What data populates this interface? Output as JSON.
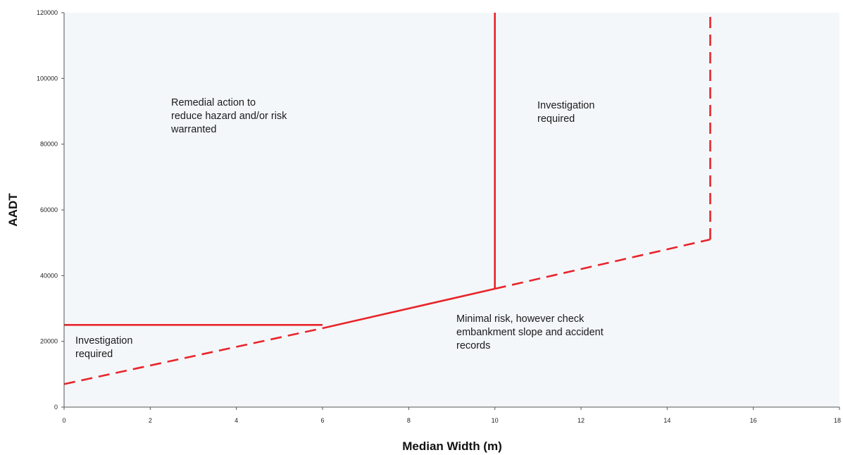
{
  "chart_data": {
    "type": "line",
    "title": "",
    "xlabel": "Median Width (m)",
    "ylabel": "AADT",
    "xlim": [
      0,
      18
    ],
    "ylim": [
      0,
      120000
    ],
    "x_ticks": [
      "0",
      "2",
      "4",
      "6",
      "8",
      "10",
      "12",
      "14",
      "16",
      "18"
    ],
    "y_ticks": [
      "0",
      "20000",
      "40000",
      "60000",
      "80000",
      "100000",
      "120000"
    ],
    "grid": false,
    "line_color": "#e8252b",
    "background_color": "#f4f7fa",
    "series": [
      {
        "style": "solid",
        "x": [
          0,
          6
        ],
        "y": [
          25000,
          25000
        ]
      },
      {
        "style": "solid",
        "x": [
          6,
          10
        ],
        "y": [
          24000,
          36000
        ]
      },
      {
        "style": "solid",
        "x": [
          10,
          10
        ],
        "y": [
          36000,
          120000
        ]
      },
      {
        "style": "dashed",
        "x": [
          0,
          6
        ],
        "y": [
          7000,
          24000
        ]
      },
      {
        "style": "dashed",
        "x": [
          10,
          15
        ],
        "y": [
          36000,
          51000
        ]
      },
      {
        "style": "dashed",
        "x": [
          15,
          15
        ],
        "y": [
          51000,
          120000
        ]
      }
    ],
    "annotations": [
      {
        "lines": [
          "Remedial action to",
          "reduce hazard and/or risk",
          "warranted"
        ]
      },
      {
        "lines": [
          "Investigation",
          "required"
        ]
      },
      {
        "lines": [
          "Investigation",
          "required"
        ]
      },
      {
        "lines": [
          "Minimal risk, however check",
          "embankment slope and accident",
          "records"
        ]
      }
    ]
  }
}
